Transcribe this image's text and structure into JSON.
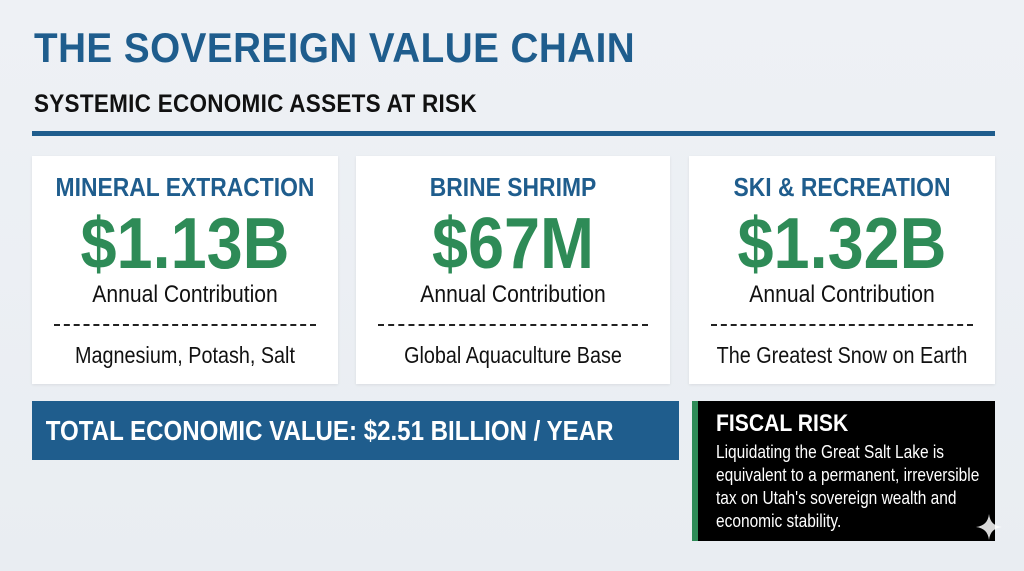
{
  "header": {
    "title": "THE SOVEREIGN VALUE CHAIN",
    "subtitle": "SYSTEMIC ECONOMIC ASSETS AT RISK"
  },
  "cards": [
    {
      "label": "MINERAL EXTRACTION",
      "value": "$1.13B",
      "contribution": "Annual Contribution",
      "detail": "Magnesium, Potash, Salt"
    },
    {
      "label": "BRINE SHRIMP",
      "value": "$67M",
      "contribution": "Annual Contribution",
      "detail": "Global Aquaculture Base"
    },
    {
      "label": "SKI & RECREATION",
      "value": "$1.32B",
      "contribution": "Annual Contribution",
      "detail": "The Greatest Snow on Earth"
    }
  ],
  "total": {
    "text": "TOTAL ECONOMIC VALUE: $2.51 BILLION / YEAR"
  },
  "fiscal_risk": {
    "title": "FISCAL RISK",
    "body": "Liquidating the Great Salt Lake is equivalent to a permanent, irreversible tax on Utah's sovereign wealth and economic stability."
  },
  "colors": {
    "primary_blue": "#1f5d8d",
    "accent_green": "#2e8b57",
    "background": "#eef1f5"
  },
  "icons": {
    "corner": "sparkle-icon"
  }
}
